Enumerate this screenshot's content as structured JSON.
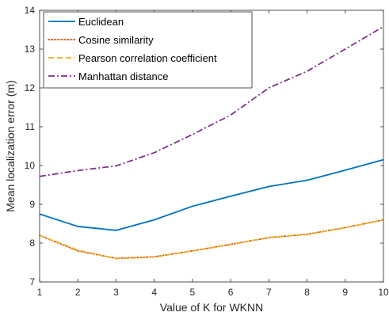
{
  "chart_data": {
    "type": "line",
    "title": "",
    "xlabel": "Value of K for WKNN",
    "ylabel": "Mean localization error (m)",
    "x": [
      1,
      2,
      3,
      4,
      5,
      6,
      7,
      8,
      9,
      10
    ],
    "xlim": [
      1,
      10
    ],
    "ylim": [
      7,
      14
    ],
    "xticks": [
      "1",
      "2",
      "3",
      "4",
      "5",
      "6",
      "7",
      "8",
      "9",
      "10"
    ],
    "yticks": [
      "7",
      "8",
      "9",
      "10",
      "11",
      "12",
      "13",
      "14"
    ],
    "grid": false,
    "legend_position": "top-left",
    "series": [
      {
        "name": "Euclidean",
        "color": "#0072BD",
        "style": "solid",
        "values": [
          8.75,
          8.43,
          8.33,
          8.6,
          8.95,
          9.21,
          9.46,
          9.62,
          9.88,
          10.15
        ]
      },
      {
        "name": "Cosine similarity",
        "color": "#D95319",
        "style": "dotted",
        "values": [
          8.2,
          7.8,
          7.61,
          7.65,
          7.8,
          7.97,
          8.14,
          8.23,
          8.4,
          8.6
        ]
      },
      {
        "name": "Pearson correlation coefficient",
        "color": "#EDB120",
        "style": "dashed",
        "values": [
          8.2,
          7.82,
          7.6,
          7.64,
          7.8,
          7.96,
          8.15,
          8.22,
          8.4,
          8.6
        ]
      },
      {
        "name": "Manhattan distance",
        "color": "#7E2F8E",
        "style": "dashdot",
        "values": [
          9.72,
          9.87,
          9.99,
          10.33,
          10.8,
          11.3,
          12.0,
          12.43,
          13.0,
          13.58
        ]
      }
    ]
  }
}
